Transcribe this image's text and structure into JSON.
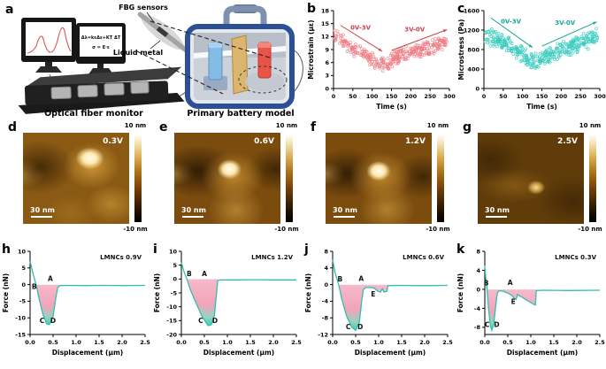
{
  "panel_a": {
    "letter": "a",
    "formula_line1": "Δλ=kεΔε+KT ΔT",
    "formula_line2": "σ = E·ε",
    "fbg_label": "FBG sensors",
    "liquid_metal_label": "Liquid metal",
    "monitor_label": "Optical fiber monitor",
    "battery_label": "Primary battery model"
  },
  "afm": {
    "panels": [
      {
        "letter": "d",
        "voltage": "0.3V",
        "scalebar_label": "30 nm",
        "colorbar_max": "10 nm",
        "colorbar_min": "-10 nm"
      },
      {
        "letter": "e",
        "voltage": "0.6V",
        "scalebar_label": "30 nm",
        "colorbar_max": "10 nm",
        "colorbar_min": "-10 nm"
      },
      {
        "letter": "f",
        "voltage": "1.2V",
        "scalebar_label": "30 nm",
        "colorbar_max": "10 nm",
        "colorbar_min": "-10 nm"
      },
      {
        "letter": "g",
        "voltage": "2.5V",
        "scalebar_label": "30 nm",
        "colorbar_max": "10 nm",
        "colorbar_min": "-10 nm"
      }
    ]
  },
  "chart_data": [
    {
      "panel": "b",
      "letter": "b",
      "type": "scatter",
      "xlabel": "Time (s)",
      "ylabel": "Microstrain (με)",
      "xlim": [
        0,
        300
      ],
      "ylim": [
        0,
        18
      ],
      "xticks": [
        0,
        50,
        100,
        150,
        200,
        250,
        300
      ],
      "xtick_labels": [
        "0",
        "50",
        "100",
        "150",
        "200",
        "250",
        "300"
      ],
      "yticks": [
        0,
        3,
        6,
        9,
        12,
        15,
        18
      ],
      "ytick_labels": [
        "0",
        "3",
        "6",
        "9",
        "12",
        "15",
        "18"
      ],
      "color": "#ee7e85",
      "arrow_color": "#c9454e",
      "trend_anchors": [
        [
          0,
          12.2
        ],
        [
          20,
          11.3
        ],
        [
          60,
          8.6
        ],
        [
          100,
          6.6
        ],
        [
          120,
          5.2
        ],
        [
          130,
          5.4
        ],
        [
          160,
          7.0
        ],
        [
          200,
          8.3
        ],
        [
          250,
          9.6
        ],
        [
          300,
          10.9
        ]
      ],
      "noise_band": 1.9,
      "n_points": 340,
      "seed": 7,
      "annotations": [
        {
          "text": "0V-3V",
          "x": 70,
          "y": 13.6
        },
        {
          "text": "3V-0V",
          "x": 210,
          "y": 13.2
        }
      ],
      "arrows": [
        {
          "x1": 18,
          "y1": 14.6,
          "x2": 126,
          "y2": 8.6
        },
        {
          "x1": 150,
          "y1": 8.8,
          "x2": 294,
          "y2": 13.6
        }
      ]
    },
    {
      "panel": "c",
      "letter": "c",
      "type": "scatter",
      "xlabel": "Time (s)",
      "ylabel": "Microstress (Pa)",
      "xlim": [
        0,
        300
      ],
      "ylim": [
        0,
        1600
      ],
      "xticks": [
        0,
        50,
        100,
        150,
        200,
        250,
        300
      ],
      "xtick_labels": [
        "0",
        "50",
        "100",
        "150",
        "200",
        "250",
        "300"
      ],
      "yticks": [
        0,
        400,
        800,
        1200,
        1600
      ],
      "ytick_labels": [
        "0",
        "400",
        "800",
        "1200",
        "1600"
      ],
      "color": "#35cbbd",
      "arrow_color": "#16a79a",
      "trend_anchors": [
        [
          0,
          1120
        ],
        [
          30,
          1020
        ],
        [
          60,
          900
        ],
        [
          90,
          760
        ],
        [
          120,
          580
        ],
        [
          135,
          560
        ],
        [
          170,
          700
        ],
        [
          210,
          820
        ],
        [
          260,
          960
        ],
        [
          300,
          1080
        ]
      ],
      "noise_band": 195,
      "n_points": 360,
      "seed": 13,
      "annotations": [
        {
          "text": "0V-3V",
          "x": 70,
          "y": 1340
        },
        {
          "text": "3V-0V",
          "x": 210,
          "y": 1310
        }
      ],
      "arrows": [
        {
          "x1": 18,
          "y1": 1450,
          "x2": 126,
          "y2": 840
        },
        {
          "x1": 150,
          "y1": 870,
          "x2": 292,
          "y2": 1370
        }
      ]
    },
    {
      "panel": "h",
      "letter": "h",
      "type": "line",
      "label": "LMNCs 0.9V",
      "xlabel": "Displacement (μm)",
      "ylabel": "Force (nN)",
      "xlim": [
        0,
        2.5
      ],
      "ylim": [
        -15,
        10
      ],
      "xticks": [
        0,
        0.5,
        1.0,
        1.5,
        2.0,
        2.5
      ],
      "xtick_labels": [
        "0.0",
        "0.5",
        "1.0",
        "1.5",
        "2.0",
        "2.5"
      ],
      "yticks": [
        10,
        5,
        0,
        -5,
        -10,
        -15
      ],
      "ytick_labels": [
        "10",
        "5",
        "0",
        "-5",
        "-10",
        "-15"
      ],
      "line_color": "#2fbfae",
      "points": [
        [
          0,
          7
        ],
        [
          0.06,
          3.5
        ],
        [
          0.13,
          0
        ],
        [
          0.2,
          -4.5
        ],
        [
          0.28,
          -9
        ],
        [
          0.36,
          -11.8
        ],
        [
          0.42,
          -12
        ],
        [
          0.5,
          -9.5
        ],
        [
          0.56,
          -4
        ],
        [
          0.6,
          -1
        ],
        [
          0.64,
          -0.3
        ],
        [
          0.8,
          -0.25
        ],
        [
          1.2,
          -0.3
        ],
        [
          1.6,
          -0.25
        ],
        [
          2.0,
          -0.3
        ],
        [
          2.5,
          -0.25
        ]
      ],
      "fill_range": [
        0.13,
        0.64
      ],
      "point_labels": [
        {
          "t": "A",
          "x": 0.44,
          "y": 1.1
        },
        {
          "t": "B",
          "x": 0.09,
          "y": -1.3
        },
        {
          "t": "C",
          "x": 0.26,
          "y": -11.6
        },
        {
          "t": "D",
          "x": 0.5,
          "y": -11.6
        }
      ]
    },
    {
      "panel": "i",
      "letter": "i",
      "type": "line",
      "label": "LMNCs 1.2V",
      "xlabel": "Displacement (μm)",
      "ylabel": "Force (nN)",
      "xlim": [
        0,
        2.5
      ],
      "ylim": [
        -20,
        10
      ],
      "xticks": [
        0,
        0.5,
        1.0,
        1.5,
        2.0,
        2.5
      ],
      "xtick_labels": [
        "0.0",
        "0.5",
        "1.0",
        "1.5",
        "2.0",
        "2.5"
      ],
      "yticks": [
        10,
        5,
        0,
        -5,
        -10,
        -15,
        -20
      ],
      "ytick_labels": [
        "10",
        "5",
        "0",
        "-5",
        "-10",
        "-15",
        "-20"
      ],
      "line_color": "#2fbfae",
      "points": [
        [
          0,
          6
        ],
        [
          0.05,
          3
        ],
        [
          0.12,
          0
        ],
        [
          0.2,
          -4
        ],
        [
          0.3,
          -8
        ],
        [
          0.45,
          -13.5
        ],
        [
          0.58,
          -16.8
        ],
        [
          0.65,
          -16.5
        ],
        [
          0.72,
          -13
        ],
        [
          0.76,
          -6
        ],
        [
          0.79,
          -0.5
        ],
        [
          0.85,
          -0.3
        ],
        [
          1.2,
          -0.3
        ],
        [
          1.6,
          -0.25
        ],
        [
          2.0,
          -0.3
        ],
        [
          2.5,
          -0.3
        ]
      ],
      "fill_range": [
        0.12,
        0.79
      ],
      "point_labels": [
        {
          "t": "A",
          "x": 0.5,
          "y": 1.1
        },
        {
          "t": "B",
          "x": 0.17,
          "y": 1.0
        },
        {
          "t": "C",
          "x": 0.42,
          "y": -15.9
        },
        {
          "t": "D",
          "x": 0.73,
          "y": -15.9
        }
      ]
    },
    {
      "panel": "j",
      "letter": "j",
      "type": "line",
      "label": "LMNCs 0.6V",
      "xlabel": "Displacement (μm)",
      "ylabel": "Force (nN)",
      "xlim": [
        0,
        2.5
      ],
      "ylim": [
        -12,
        8
      ],
      "xticks": [
        0,
        0.5,
        1.0,
        1.5,
        2.0,
        2.5
      ],
      "xtick_labels": [
        "0.0",
        "0.5",
        "1.0",
        "1.5",
        "2.0",
        "2.5"
      ],
      "yticks": [
        8,
        4,
        0,
        -4,
        -8,
        -12
      ],
      "ytick_labels": [
        "8",
        "4",
        "0",
        "-4",
        "-8",
        "-12"
      ],
      "line_color": "#2fbfae",
      "points": [
        [
          0,
          6
        ],
        [
          0.05,
          3
        ],
        [
          0.13,
          0
        ],
        [
          0.2,
          -3.5
        ],
        [
          0.3,
          -7.5
        ],
        [
          0.42,
          -10.3
        ],
        [
          0.5,
          -11
        ],
        [
          0.58,
          -9
        ],
        [
          0.63,
          -4
        ],
        [
          0.67,
          -1.2
        ],
        [
          0.72,
          -0.7
        ],
        [
          0.8,
          -0.7
        ],
        [
          0.9,
          -0.8
        ],
        [
          0.98,
          -1.6
        ],
        [
          1.04,
          -1.8
        ],
        [
          1.08,
          -1.0
        ],
        [
          1.12,
          -1.8
        ],
        [
          1.18,
          -1.6
        ],
        [
          1.2,
          -0.25
        ],
        [
          1.4,
          -0.2
        ],
        [
          2.0,
          -0.25
        ],
        [
          2.5,
          -0.2
        ]
      ],
      "fill_range": [
        0.13,
        1.2
      ],
      "point_labels": [
        {
          "t": "A",
          "x": 0.62,
          "y": 0.9
        },
        {
          "t": "B",
          "x": 0.16,
          "y": 0.8
        },
        {
          "t": "C",
          "x": 0.34,
          "y": -10.7
        },
        {
          "t": "D",
          "x": 0.6,
          "y": -10.7
        },
        {
          "t": "E",
          "x": 0.88,
          "y": -2.9
        }
      ]
    },
    {
      "panel": "k",
      "letter": "k",
      "type": "line",
      "label": "LMNCs 0.3V",
      "xlabel": "Displacement (μm)",
      "ylabel": "Force (nN)",
      "xlim": [
        0,
        2.5
      ],
      "ylim": [
        -9.5,
        8
      ],
      "xticks": [
        0,
        0.5,
        1.0,
        1.5,
        2.0,
        2.5
      ],
      "xtick_labels": [
        "0.0",
        "0.5",
        "1.0",
        "1.5",
        "2.0",
        "2.5"
      ],
      "yticks": [
        8,
        4,
        0,
        -4,
        -8
      ],
      "ytick_labels": [
        "8",
        "4",
        "0",
        "-4",
        "-8"
      ],
      "line_color": "#2fbfae",
      "points": [
        [
          0,
          5
        ],
        [
          0.02,
          2.5
        ],
        [
          0.05,
          0
        ],
        [
          0.08,
          -4
        ],
        [
          0.12,
          -7.5
        ],
        [
          0.15,
          -8.6
        ],
        [
          0.19,
          -7.5
        ],
        [
          0.23,
          -4
        ],
        [
          0.27,
          -1
        ],
        [
          0.3,
          -0.3
        ],
        [
          0.4,
          -0.4
        ],
        [
          0.5,
          -0.8
        ],
        [
          0.58,
          -1.2
        ],
        [
          0.64,
          -1.9
        ],
        [
          0.68,
          -2.1
        ],
        [
          0.71,
          -1.1
        ],
        [
          0.78,
          -1.5
        ],
        [
          0.85,
          -1.9
        ],
        [
          0.95,
          -2.5
        ],
        [
          1.05,
          -3.1
        ],
        [
          1.1,
          -3.3
        ],
        [
          1.12,
          -0.25
        ],
        [
          1.3,
          -0.2
        ],
        [
          1.8,
          -0.25
        ],
        [
          2.5,
          -0.2
        ]
      ],
      "fill_range": [
        0.05,
        1.12
      ],
      "point_labels": [
        {
          "t": "A",
          "x": 0.55,
          "y": 0.9
        },
        {
          "t": "B",
          "x": 0.03,
          "y": 0.8
        },
        {
          "t": "C",
          "x": 0.05,
          "y": -7.9
        },
        {
          "t": "D",
          "x": 0.26,
          "y": -7.9
        },
        {
          "t": "E",
          "x": 0.62,
          "y": -3.1
        }
      ]
    }
  ]
}
